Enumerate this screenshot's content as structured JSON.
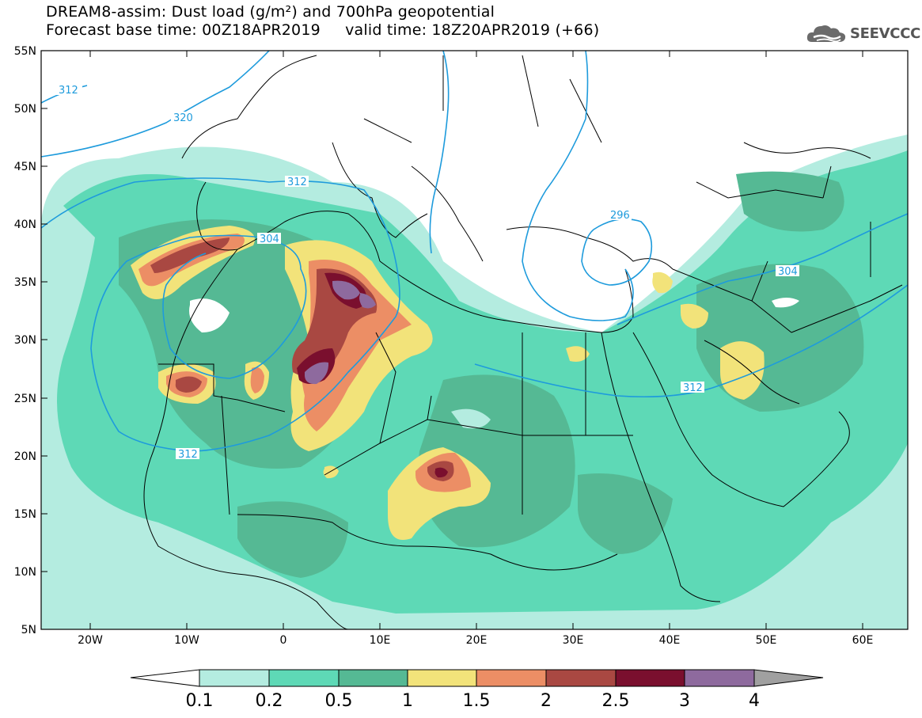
{
  "header": {
    "title_line1": "DREAM8-assim: Dust load (g/m²) and 700hPa geopotential",
    "title_line2": "Forecast base time: 00Z18APR2019     valid time: 18Z20APR2019 (+66)"
  },
  "logo": {
    "text": "SEEVCCC",
    "icon": "cloud-logo-icon"
  },
  "map": {
    "lon_labels": [
      "20W",
      "10W",
      "0",
      "10E",
      "20E",
      "30E",
      "40E",
      "50E",
      "60E"
    ],
    "lat_labels": [
      "55N",
      "50N",
      "45N",
      "40N",
      "35N",
      "30N",
      "25N",
      "20N",
      "15N",
      "10N",
      "5N"
    ],
    "contour_labels": [
      "312",
      "320",
      "312",
      "304",
      "296",
      "304",
      "312",
      "312"
    ]
  },
  "colorbar": {
    "ticks": [
      "0.1",
      "0.2",
      "0.5",
      "1",
      "1.5",
      "2",
      "2.5",
      "3",
      "4"
    ],
    "colors": [
      "#ffffff",
      "#b4ece0",
      "#5ed9b6",
      "#55b994",
      "#f2e37a",
      "#ec8e65",
      "#a94842",
      "#7a0f2e",
      "#8e6a9e",
      "#a0a0a0"
    ]
  }
}
